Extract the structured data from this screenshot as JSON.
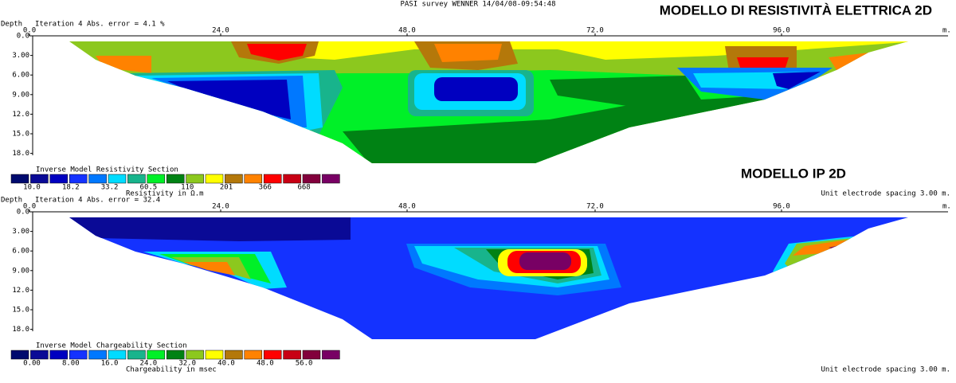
{
  "survey": "PASI survey WENNER 14/04/08-09:54:48",
  "palette": [
    "#000a6e",
    "#0a0a96",
    "#0000c0",
    "#1432ff",
    "#0078ff",
    "#00dcff",
    "#18b48c",
    "#00f028",
    "#008214",
    "#8cc81e",
    "#ffff00",
    "#b4780a",
    "#ff8200",
    "#ff0000",
    "#c80014",
    "#82003c",
    "#780064"
  ],
  "panels": [
    {
      "heading": "MODELLO DI RESISTIVITÀ ELETTRICA 2D",
      "depth_label": "Depth",
      "iteration": "Iteration 4 Abs. error = 4.1 %",
      "x_ticks": [
        "0.0",
        "24.0",
        "48.0",
        "72.0",
        "96.0"
      ],
      "x_unit": "m.",
      "depth_ticks": [
        "0.0",
        "3.00",
        "6.00",
        "9.00",
        "12.0",
        "15.0",
        "18.0"
      ],
      "legend_title": "Inverse Model Resistivity Section",
      "legend_labels": [
        "10.0",
        "18.2",
        "33.2",
        "60.5",
        "110",
        "201",
        "366",
        "668"
      ],
      "legend_unit": "Resistivity in Ω.m",
      "spacing": "Unit electrode spacing 3.00 m."
    },
    {
      "heading": "MODELLO IP 2D",
      "depth_label": "Depth",
      "iteration": "Iteration 4 Abs. error = 32.4",
      "x_ticks": [
        "0.0",
        "24.0",
        "48.0",
        "72.0",
        "96.0"
      ],
      "x_unit": "m.",
      "depth_ticks": [
        "0.0",
        "3.00",
        "6.00",
        "9.00",
        "12.0",
        "15.0",
        "18.0"
      ],
      "legend_title": "Inverse Model Chargeability Section",
      "legend_labels": [
        "0.00",
        "8.00",
        "16.0",
        "24.0",
        "32.0",
        "40.0",
        "48.0",
        "56.0"
      ],
      "legend_unit": "Chargeability in msec",
      "spacing": "Unit electrode spacing 3.00 m."
    }
  ]
}
